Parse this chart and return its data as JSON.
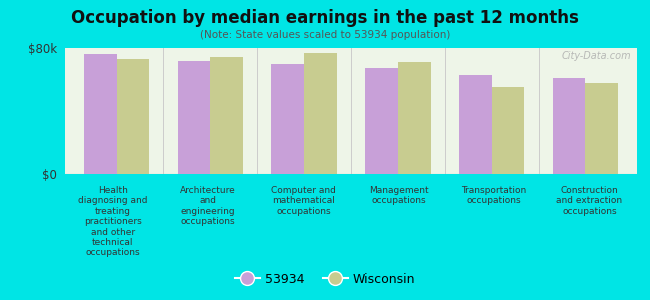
{
  "title": "Occupation by median earnings in the past 12 months",
  "subtitle": "(Note: State values scaled to 53934 population)",
  "background_color": "#00e5e5",
  "plot_bg_color": "#eef5e8",
  "categories": [
    "Health\ndiagnosing and\ntreating\npractitioners\nand other\ntechnical\noccupations",
    "Architecture\nand\nengineering\noccupations",
    "Computer and\nmathematical\noccupations",
    "Management\noccupations",
    "Transportation\noccupations",
    "Construction\nand extraction\noccupations"
  ],
  "values_53934": [
    76000,
    72000,
    70000,
    67000,
    63000,
    61000
  ],
  "values_wisconsin": [
    73000,
    74000,
    77000,
    71000,
    55000,
    58000
  ],
  "color_53934": "#c8a0d8",
  "color_wisconsin": "#c8cc90",
  "ylim": [
    0,
    80000
  ],
  "ytick_labels": [
    "$0",
    "$80k"
  ],
  "legend_label_1": "53934",
  "legend_label_2": "Wisconsin",
  "watermark": "City-Data.com"
}
